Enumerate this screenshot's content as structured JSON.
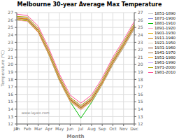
{
  "chart_data": {
    "type": "line",
    "title": "Melbourne 30-year Average Max Temperature",
    "xlabel": "Month",
    "ylabel": "Temperature (°C)",
    "categories": [
      "Jan",
      "Feb",
      "Mar",
      "Apr",
      "May",
      "Jun",
      "Jul",
      "Aug",
      "Sep",
      "Oct",
      "Nov",
      "Dec"
    ],
    "ylim": [
      12,
      27
    ],
    "yticks": [
      12,
      13,
      14,
      15,
      16,
      17,
      18,
      19,
      20,
      21,
      22,
      23,
      24,
      25,
      26,
      27
    ],
    "y2lim": [
      12,
      27
    ],
    "y2ticks": [
      12,
      13,
      14,
      15,
      16,
      17,
      18,
      19,
      20,
      21,
      22,
      23,
      24,
      25,
      26,
      27
    ],
    "grid": true,
    "legend": "upper right",
    "annotations": [
      "0",
      "www.layws.com"
    ],
    "series": [
      {
        "name": "1851-1890",
        "color": "#c8c8c8",
        "values": [
          26.1,
          26.0,
          24.5,
          21.5,
          18.0,
          15.2,
          14.2,
          15.2,
          17.5,
          20.2,
          22.5,
          25.0
        ]
      },
      {
        "name": "1871-1900",
        "color": "#9090e0",
        "values": [
          26.1,
          26.0,
          24.5,
          21.5,
          18.0,
          15.2,
          14.0,
          15.1,
          17.4,
          20.2,
          22.5,
          25.0
        ]
      },
      {
        "name": "1881-1910",
        "color": "#00bb00",
        "values": [
          26.0,
          25.9,
          24.4,
          21.3,
          17.8,
          15.0,
          12.8,
          14.9,
          17.3,
          20.0,
          22.3,
          24.8
        ]
      },
      {
        "name": "1891-1920",
        "color": "#ffaacc",
        "values": [
          26.0,
          25.8,
          24.3,
          21.3,
          17.8,
          15.0,
          13.9,
          15.0,
          17.3,
          20.0,
          22.3,
          24.8
        ]
      },
      {
        "name": "1901-1930",
        "color": "#ddaa00",
        "values": [
          26.1,
          25.9,
          24.4,
          21.4,
          17.9,
          15.1,
          14.0,
          15.1,
          17.4,
          20.2,
          22.5,
          25.0
        ]
      },
      {
        "name": "1911-1940",
        "color": "#cc7700",
        "values": [
          26.2,
          26.0,
          24.5,
          21.5,
          18.0,
          15.2,
          14.1,
          15.2,
          17.5,
          20.3,
          22.6,
          25.1
        ]
      },
      {
        "name": "1921-1950",
        "color": "#ddccaa",
        "values": [
          26.2,
          26.0,
          24.5,
          21.5,
          18.0,
          15.2,
          14.1,
          15.2,
          17.5,
          20.3,
          22.6,
          25.1
        ]
      },
      {
        "name": "1931-1960",
        "color": "#884422",
        "values": [
          26.3,
          26.1,
          24.6,
          21.6,
          18.1,
          15.3,
          14.2,
          15.3,
          17.6,
          20.4,
          22.7,
          25.2
        ]
      },
      {
        "name": "1941-1970",
        "color": "#aa7744",
        "values": [
          26.3,
          26.2,
          24.7,
          21.7,
          18.2,
          15.4,
          14.3,
          15.4,
          17.7,
          20.5,
          22.8,
          25.3
        ]
      },
      {
        "name": "1951-1980",
        "color": "#ffaa00",
        "values": [
          26.3,
          26.2,
          24.7,
          21.7,
          18.2,
          15.4,
          14.3,
          15.4,
          17.7,
          20.5,
          22.8,
          25.3
        ]
      },
      {
        "name": "1961-1990",
        "color": "#ccaaff",
        "values": [
          26.4,
          26.3,
          24.8,
          21.8,
          18.3,
          15.5,
          14.4,
          15.5,
          17.8,
          20.6,
          22.9,
          25.4
        ]
      },
      {
        "name": "1971-2000",
        "color": "#aaaa00",
        "values": [
          26.5,
          26.4,
          24.9,
          21.9,
          18.4,
          15.6,
          14.5,
          15.6,
          17.9,
          20.7,
          23.0,
          25.5
        ]
      },
      {
        "name": "1981-2010",
        "color": "#ff5599",
        "values": [
          26.8,
          26.6,
          25.2,
          22.2,
          18.7,
          15.9,
          14.8,
          15.9,
          18.2,
          21.0,
          23.3,
          25.8
        ]
      }
    ]
  }
}
